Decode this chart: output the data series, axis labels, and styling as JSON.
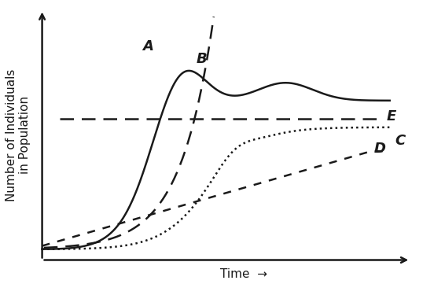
{
  "title": "",
  "ylabel": "Number of Individuals\nin Population",
  "xlabel": "Time",
  "bg_color": "#ffffff",
  "line_color": "#1a1a1a",
  "E_level": 0.6,
  "label_A": "A",
  "label_B": "B",
  "label_C": "C",
  "label_D": "D",
  "label_E": "E",
  "font_size_labels": 13,
  "font_size_axis": 11
}
